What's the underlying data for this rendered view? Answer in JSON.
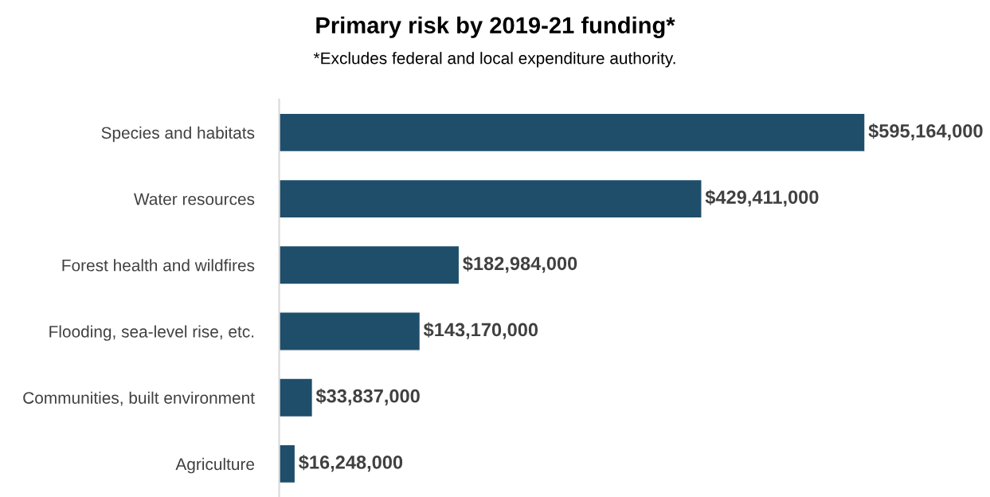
{
  "chart_data": {
    "type": "bar",
    "orientation": "horizontal",
    "title": "Primary risk by 2019-21 funding*",
    "subtitle": "*Excludes federal and local expenditure authority.",
    "categories": [
      "Species and habitats",
      "Water resources",
      "Forest health and wildfires",
      "Flooding, sea-level rise, etc.",
      "Communities, built environment",
      "Agriculture"
    ],
    "values": [
      595164000,
      429411000,
      182984000,
      143170000,
      33837000,
      16248000
    ],
    "value_labels": [
      "$595,164,000",
      "$429,411,000",
      "$182,984,000",
      "$143,170,000",
      "$33,837,000",
      "$16,248,000"
    ],
    "color": "#1f4e6b",
    "grid": false,
    "legend": false
  }
}
